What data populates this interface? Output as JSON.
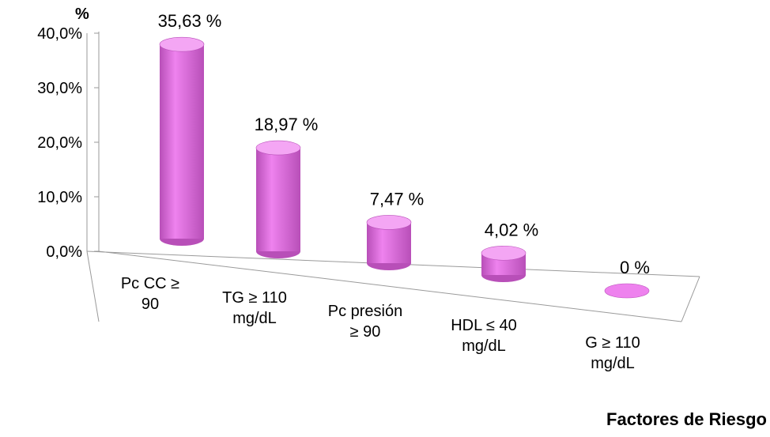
{
  "chart_data": {
    "type": "bar",
    "style": "3d-cylinder",
    "title": "",
    "ylabel": "%",
    "xlabel": "Factores de Riesgo",
    "ylim": [
      0,
      40
    ],
    "y_ticks": [
      "0,0%",
      "10,0%",
      "20,0%",
      "30,0%",
      "40,0%"
    ],
    "categories": [
      [
        "Pc CC ≥",
        "90"
      ],
      [
        "TG  ≥ 110",
        "mg/dL"
      ],
      [
        "Pc presión",
        "≥ 90"
      ],
      [
        "HDL ≤ 40",
        "mg/dL"
      ],
      [
        "G ≥ 110",
        "mg/dL"
      ]
    ],
    "values": [
      35.63,
      18.97,
      7.47,
      4.02,
      0
    ],
    "data_labels": [
      "35,63 %",
      "18,97 %",
      "7,47 %",
      "4,02 %",
      "0 %"
    ],
    "grid": false,
    "legend": "none",
    "colors": {
      "bar_face": "#ee82ee",
      "bar_top": "#f4a6f4",
      "bar_dark": "#b84fb8",
      "axis": "#9a9a9a"
    }
  }
}
